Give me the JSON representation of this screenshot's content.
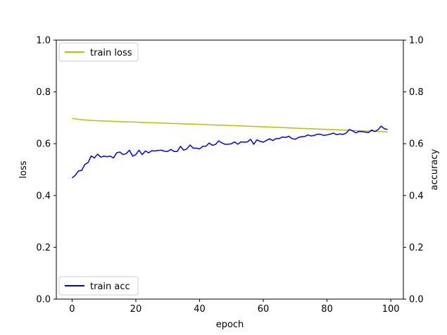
{
  "chart_data": {
    "type": "line",
    "xlabel": "epoch",
    "ylabel_left": "loss",
    "ylabel_right": "accuracy",
    "xlim": [
      -4.95,
      103.95
    ],
    "ylim_left": [
      0,
      1
    ],
    "ylim_right": [
      0,
      1
    ],
    "x_ticks": [
      0,
      20,
      40,
      60,
      80,
      100
    ],
    "y_ticks_left": [
      0.0,
      0.2,
      0.4,
      0.6,
      0.8,
      1.0
    ],
    "y_ticks_right": [
      0.0,
      0.2,
      0.4,
      0.6,
      0.8,
      1.0
    ],
    "x_tick_labels": [
      "0",
      "20",
      "40",
      "60",
      "80",
      "100"
    ],
    "y_tick_labels_left": [
      "0.0",
      "0.2",
      "0.4",
      "0.6",
      "0.8",
      "1.0"
    ],
    "y_tick_labels_right": [
      "0.0",
      "0.2",
      "0.4",
      "0.6",
      "0.8",
      "1.0"
    ],
    "grid": false,
    "series": [
      {
        "name": "train loss",
        "axis": "left",
        "color": "#bfbf00",
        "legend_position": "upper-left",
        "x": [
          0,
          1,
          2,
          3,
          4,
          5,
          6,
          7,
          8,
          9,
          10,
          11,
          12,
          13,
          14,
          15,
          16,
          17,
          18,
          19,
          20,
          21,
          22,
          23,
          24,
          25,
          26,
          27,
          28,
          29,
          30,
          31,
          32,
          33,
          34,
          35,
          36,
          37,
          38,
          39,
          40,
          41,
          42,
          43,
          44,
          45,
          46,
          47,
          48,
          49,
          50,
          51,
          52,
          53,
          54,
          55,
          56,
          57,
          58,
          59,
          60,
          61,
          62,
          63,
          64,
          65,
          66,
          67,
          68,
          69,
          70,
          71,
          72,
          73,
          74,
          75,
          76,
          77,
          78,
          79,
          80,
          81,
          82,
          83,
          84,
          85,
          86,
          87,
          88,
          89,
          90,
          91,
          92,
          93,
          94,
          95,
          96,
          97,
          98,
          99
        ],
        "values": [
          0.698,
          0.696,
          0.694,
          0.693,
          0.692,
          0.691,
          0.69,
          0.689,
          0.689,
          0.688,
          0.688,
          0.687,
          0.687,
          0.686,
          0.686,
          0.685,
          0.685,
          0.684,
          0.684,
          0.684,
          0.683,
          0.683,
          0.682,
          0.682,
          0.681,
          0.681,
          0.681,
          0.68,
          0.68,
          0.679,
          0.679,
          0.678,
          0.678,
          0.678,
          0.677,
          0.677,
          0.676,
          0.676,
          0.676,
          0.675,
          0.675,
          0.674,
          0.674,
          0.673,
          0.673,
          0.672,
          0.672,
          0.672,
          0.671,
          0.671,
          0.67,
          0.67,
          0.669,
          0.669,
          0.668,
          0.668,
          0.667,
          0.667,
          0.666,
          0.666,
          0.665,
          0.665,
          0.664,
          0.664,
          0.663,
          0.663,
          0.662,
          0.662,
          0.661,
          0.661,
          0.66,
          0.66,
          0.659,
          0.659,
          0.658,
          0.658,
          0.657,
          0.657,
          0.656,
          0.656,
          0.655,
          0.655,
          0.654,
          0.654,
          0.653,
          0.653,
          0.652,
          0.652,
          0.651,
          0.651,
          0.65,
          0.65,
          0.649,
          0.649,
          0.648,
          0.648,
          0.647,
          0.647,
          0.646,
          0.645
        ]
      },
      {
        "name": "train acc",
        "axis": "right",
        "color": "#0000ff",
        "legend_position": "lower-left",
        "x": [
          0,
          1,
          2,
          3,
          4,
          5,
          6,
          7,
          8,
          9,
          10,
          11,
          12,
          13,
          14,
          15,
          16,
          17,
          18,
          19,
          20,
          21,
          22,
          23,
          24,
          25,
          26,
          27,
          28,
          29,
          30,
          31,
          32,
          33,
          34,
          35,
          36,
          37,
          38,
          39,
          40,
          41,
          42,
          43,
          44,
          45,
          46,
          47,
          48,
          49,
          50,
          51,
          52,
          53,
          54,
          55,
          56,
          57,
          58,
          59,
          60,
          61,
          62,
          63,
          64,
          65,
          66,
          67,
          68,
          69,
          70,
          71,
          72,
          73,
          74,
          75,
          76,
          77,
          78,
          79,
          80,
          81,
          82,
          83,
          84,
          85,
          86,
          87,
          88,
          89,
          90,
          91,
          92,
          93,
          94,
          95,
          96,
          97,
          98,
          99
        ],
        "values": [
          0.468,
          0.478,
          0.495,
          0.497,
          0.52,
          0.527,
          0.553,
          0.545,
          0.56,
          0.548,
          0.552,
          0.55,
          0.552,
          0.545,
          0.565,
          0.568,
          0.558,
          0.562,
          0.575,
          0.552,
          0.558,
          0.575,
          0.558,
          0.572,
          0.565,
          0.573,
          0.572,
          0.574,
          0.575,
          0.571,
          0.57,
          0.578,
          0.57,
          0.57,
          0.59,
          0.575,
          0.58,
          0.595,
          0.583,
          0.583,
          0.58,
          0.59,
          0.59,
          0.603,
          0.594,
          0.597,
          0.611,
          0.603,
          0.598,
          0.598,
          0.6,
          0.607,
          0.598,
          0.607,
          0.606,
          0.607,
          0.617,
          0.598,
          0.615,
          0.609,
          0.606,
          0.613,
          0.619,
          0.612,
          0.62,
          0.62,
          0.626,
          0.624,
          0.629,
          0.62,
          0.617,
          0.624,
          0.627,
          0.628,
          0.634,
          0.63,
          0.632,
          0.637,
          0.636,
          0.632,
          0.634,
          0.637,
          0.641,
          0.635,
          0.638,
          0.636,
          0.641,
          0.655,
          0.65,
          0.642,
          0.647,
          0.646,
          0.645,
          0.643,
          0.653,
          0.647,
          0.654,
          0.668,
          0.658,
          0.655
        ]
      }
    ]
  }
}
